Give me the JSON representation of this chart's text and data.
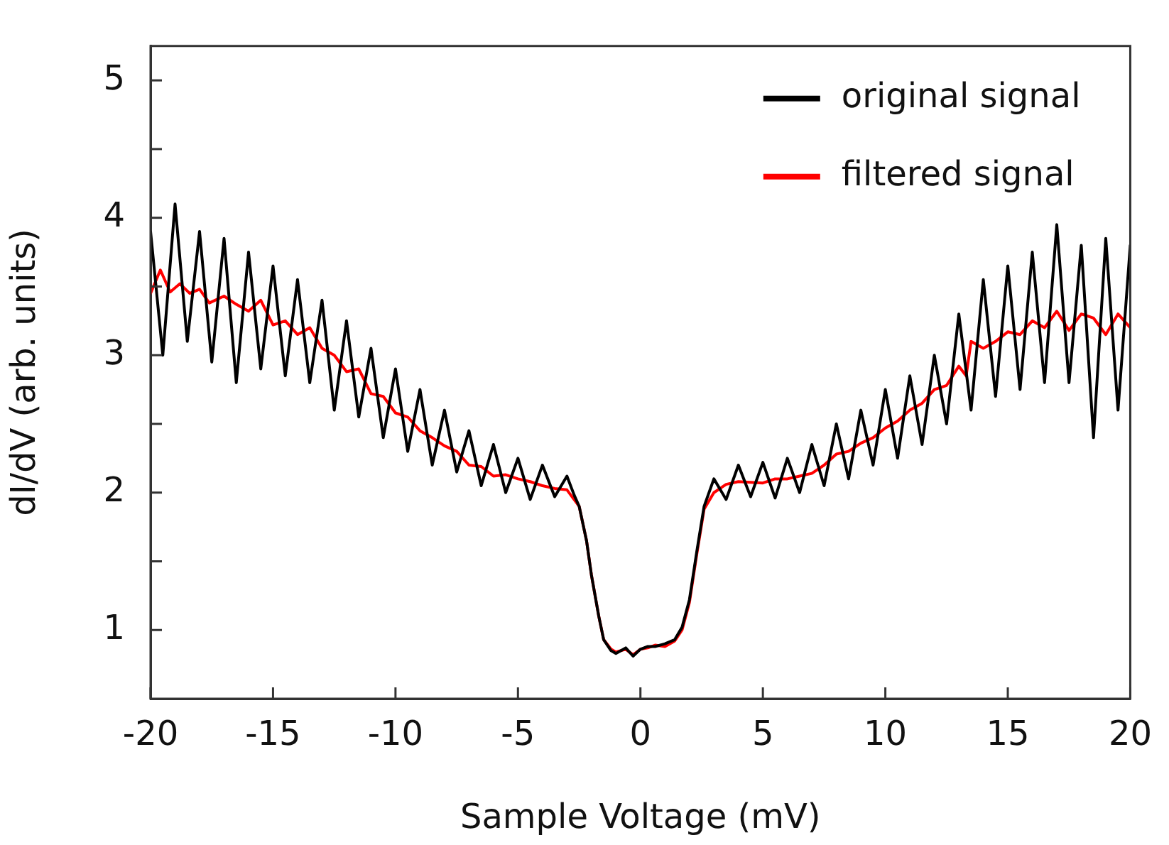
{
  "chart_data": {
    "type": "line",
    "xlabel": "Sample Voltage (mV)",
    "ylabel": "dI/dV (arb. units)",
    "xlim": [
      -20,
      20
    ],
    "xticks": [
      -20,
      -15,
      -10,
      -5,
      0,
      5,
      10,
      15,
      20
    ],
    "ylim": [
      0.5,
      5.25
    ],
    "yticks": [
      1,
      {
        "value": 1.5,
        "label": null
      },
      2,
      {
        "value": 2.5,
        "label": null
      },
      3,
      {
        "value": 3.5,
        "label": null
      },
      4,
      {
        "value": 4.5,
        "label": null
      },
      5
    ],
    "grid": false,
    "legend": "top right",
    "marker": "none",
    "line_style": "solid",
    "series": [
      {
        "name": "original signal",
        "color": "#000000",
        "x": [
          -20,
          -19.5,
          -19,
          -18.5,
          -18,
          -17.5,
          -17,
          -16.5,
          -16,
          -15.5,
          -15,
          -14.5,
          -14,
          -13.5,
          -13,
          -12.5,
          -12,
          -11.5,
          -11,
          -10.5,
          -10,
          -9.5,
          -9,
          -8.5,
          -8,
          -7.5,
          -7,
          -6.5,
          -6,
          -5.5,
          -5,
          -4.5,
          -4,
          -3.5,
          -3,
          -2.7,
          -2.5,
          -2.2,
          -2,
          -1.7,
          -1.5,
          -1.2,
          -1,
          -0.6,
          -0.3,
          0,
          0.3,
          0.6,
          1,
          1.4,
          1.7,
          2,
          2.3,
          2.6,
          3,
          3.5,
          4,
          4.5,
          5,
          5.5,
          6,
          6.5,
          7,
          7.5,
          8,
          8.5,
          9,
          9.5,
          10,
          10.5,
          11,
          11.5,
          12,
          12.5,
          13,
          13.5,
          14,
          14.5,
          15,
          15.5,
          16,
          16.5,
          17,
          17.5,
          18,
          18.5,
          19,
          19.5,
          20
        ],
        "values": [
          3.9,
          3.0,
          4.1,
          3.1,
          3.9,
          2.95,
          3.85,
          2.8,
          3.75,
          2.9,
          3.65,
          2.85,
          3.55,
          2.8,
          3.4,
          2.6,
          3.25,
          2.55,
          3.05,
          2.4,
          2.9,
          2.3,
          2.75,
          2.2,
          2.6,
          2.15,
          2.45,
          2.05,
          2.35,
          2.0,
          2.25,
          1.95,
          2.2,
          1.97,
          2.12,
          1.98,
          1.9,
          1.65,
          1.4,
          1.1,
          0.93,
          0.85,
          0.83,
          0.87,
          0.81,
          0.86,
          0.88,
          0.88,
          0.9,
          0.93,
          1.02,
          1.22,
          1.57,
          1.9,
          2.1,
          1.95,
          2.2,
          1.97,
          2.22,
          1.96,
          2.25,
          2.0,
          2.35,
          2.05,
          2.5,
          2.1,
          2.6,
          2.2,
          2.75,
          2.25,
          2.85,
          2.35,
          3.0,
          2.5,
          3.3,
          2.6,
          3.55,
          2.7,
          3.65,
          2.75,
          3.75,
          2.8,
          3.95,
          2.8,
          3.8,
          2.4,
          3.85,
          2.6,
          3.8
        ]
      },
      {
        "name": "filtered signal",
        "color": "#ff0000",
        "x": [
          -20,
          -19.6,
          -19.2,
          -18.8,
          -18.4,
          -18,
          -17.6,
          -17,
          -16.5,
          -16,
          -15.5,
          -15,
          -14.5,
          -14,
          -13.5,
          -13,
          -12.5,
          -12,
          -11.5,
          -11,
          -10.5,
          -10,
          -9.5,
          -9,
          -8.5,
          -8,
          -7.5,
          -7,
          -6.5,
          -6,
          -5.5,
          -5,
          -4.5,
          -4,
          -3.5,
          -3,
          -2.5,
          -2.2,
          -2,
          -1.7,
          -1.5,
          -1.2,
          -1,
          -0.6,
          -0.3,
          0,
          0.3,
          0.6,
          1,
          1.4,
          1.7,
          2,
          2.3,
          2.6,
          3,
          3.5,
          4,
          5,
          5.5,
          6,
          6.5,
          7,
          7.5,
          8,
          8.5,
          9,
          9.5,
          10,
          10.5,
          11,
          11.5,
          12,
          12.5,
          13,
          13.3,
          13.5,
          14,
          14.5,
          15,
          15.5,
          16,
          16.5,
          17,
          17.5,
          18,
          18.5,
          19,
          19.5,
          20
        ],
        "values": [
          3.45,
          3.62,
          3.46,
          3.52,
          3.45,
          3.48,
          3.38,
          3.43,
          3.37,
          3.32,
          3.4,
          3.22,
          3.25,
          3.15,
          3.2,
          3.05,
          3.0,
          2.88,
          2.9,
          2.72,
          2.7,
          2.58,
          2.55,
          2.45,
          2.4,
          2.34,
          2.3,
          2.2,
          2.19,
          2.12,
          2.13,
          2.1,
          2.08,
          2.05,
          2.03,
          2.02,
          1.9,
          1.65,
          1.4,
          1.1,
          0.93,
          0.86,
          0.84,
          0.86,
          0.82,
          0.86,
          0.87,
          0.89,
          0.88,
          0.92,
          1.0,
          1.2,
          1.55,
          1.88,
          2.0,
          2.06,
          2.08,
          2.07,
          2.1,
          2.1,
          2.12,
          2.14,
          2.2,
          2.28,
          2.3,
          2.36,
          2.4,
          2.47,
          2.52,
          2.6,
          2.65,
          2.75,
          2.78,
          2.92,
          2.85,
          3.1,
          3.05,
          3.1,
          3.17,
          3.15,
          3.25,
          3.2,
          3.32,
          3.18,
          3.3,
          3.27,
          3.15,
          3.3,
          3.2
        ]
      }
    ]
  }
}
